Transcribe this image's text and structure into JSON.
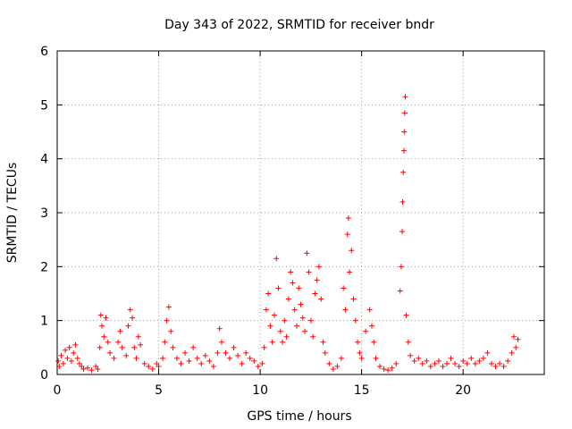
{
  "chart_data": {
    "type": "scatter",
    "title": "Day 343 of 2022, SRMTID for receiver bndr",
    "xlabel": "GPS time / hours",
    "ylabel": "SRMTID / TECUs",
    "xlim": [
      0,
      24
    ],
    "ylim": [
      0,
      6
    ],
    "x_ticks": [
      0,
      5,
      10,
      15,
      20
    ],
    "y_ticks": [
      0,
      1,
      2,
      3,
      4,
      5,
      6
    ],
    "grid": true,
    "marker": "+",
    "color": "#ff0000",
    "series": [
      {
        "name": "SRMTID",
        "points": [
          [
            0.05,
            0.25
          ],
          [
            0.1,
            0.15
          ],
          [
            0.2,
            0.35
          ],
          [
            0.3,
            0.2
          ],
          [
            0.4,
            0.45
          ],
          [
            0.5,
            0.3
          ],
          [
            0.6,
            0.5
          ],
          [
            0.7,
            0.25
          ],
          [
            0.8,
            0.4
          ],
          [
            0.9,
            0.55
          ],
          [
            1.0,
            0.3
          ],
          [
            1.1,
            0.2
          ],
          [
            1.2,
            0.15
          ],
          [
            1.3,
            0.1
          ],
          [
            1.5,
            0.12
          ],
          [
            1.7,
            0.08
          ],
          [
            1.9,
            0.15
          ],
          [
            2.0,
            0.1
          ],
          [
            2.1,
            0.5
          ],
          [
            2.15,
            1.1
          ],
          [
            2.2,
            0.9
          ],
          [
            2.3,
            0.7
          ],
          [
            2.4,
            1.05
          ],
          [
            2.5,
            0.6
          ],
          [
            2.6,
            0.4
          ],
          [
            2.8,
            0.3
          ],
          [
            3.0,
            0.6
          ],
          [
            3.1,
            0.8
          ],
          [
            3.2,
            0.5
          ],
          [
            3.4,
            0.35
          ],
          [
            3.5,
            0.9
          ],
          [
            3.6,
            1.2
          ],
          [
            3.7,
            1.05
          ],
          [
            3.8,
            0.5
          ],
          [
            3.9,
            0.3
          ],
          [
            4.0,
            0.7
          ],
          [
            4.1,
            0.55
          ],
          [
            4.3,
            0.2
          ],
          [
            4.5,
            0.15
          ],
          [
            4.7,
            0.1
          ],
          [
            4.9,
            0.2
          ],
          [
            5.0,
            0.15
          ],
          [
            5.2,
            0.3
          ],
          [
            5.3,
            0.6
          ],
          [
            5.4,
            1.0
          ],
          [
            5.5,
            1.25
          ],
          [
            5.6,
            0.8
          ],
          [
            5.7,
            0.5
          ],
          [
            5.9,
            0.3
          ],
          [
            6.1,
            0.2
          ],
          [
            6.3,
            0.4
          ],
          [
            6.5,
            0.25
          ],
          [
            6.7,
            0.5
          ],
          [
            6.9,
            0.3
          ],
          [
            7.1,
            0.2
          ],
          [
            7.3,
            0.35
          ],
          [
            7.5,
            0.25
          ],
          [
            7.7,
            0.15
          ],
          [
            7.9,
            0.4
          ],
          [
            8.0,
            0.85
          ],
          [
            8.1,
            0.6
          ],
          [
            8.3,
            0.4
          ],
          [
            8.5,
            0.3
          ],
          [
            8.7,
            0.5
          ],
          [
            8.9,
            0.35
          ],
          [
            9.1,
            0.2
          ],
          [
            9.3,
            0.4
          ],
          [
            9.5,
            0.3
          ],
          [
            9.7,
            0.25
          ],
          [
            9.9,
            0.15
          ],
          [
            10.1,
            0.2
          ],
          [
            10.2,
            0.5
          ],
          [
            10.3,
            1.2
          ],
          [
            10.4,
            1.5
          ],
          [
            10.5,
            0.9
          ],
          [
            10.6,
            0.6
          ],
          [
            10.7,
            1.1
          ],
          [
            10.8,
            2.15
          ],
          [
            10.9,
            1.6
          ],
          [
            11.0,
            0.8
          ],
          [
            11.1,
            0.6
          ],
          [
            11.2,
            1.0
          ],
          [
            11.3,
            0.7
          ],
          [
            11.4,
            1.4
          ],
          [
            11.5,
            1.9
          ],
          [
            11.6,
            1.7
          ],
          [
            11.7,
            1.2
          ],
          [
            11.8,
            0.9
          ],
          [
            11.9,
            1.6
          ],
          [
            12.0,
            1.3
          ],
          [
            12.1,
            1.05
          ],
          [
            12.2,
            0.8
          ],
          [
            12.3,
            2.25
          ],
          [
            12.4,
            1.9
          ],
          [
            12.5,
            1.0
          ],
          [
            12.6,
            0.7
          ],
          [
            12.7,
            1.5
          ],
          [
            12.8,
            1.75
          ],
          [
            12.9,
            2.0
          ],
          [
            13.0,
            1.4
          ],
          [
            13.1,
            0.6
          ],
          [
            13.2,
            0.4
          ],
          [
            13.4,
            0.2
          ],
          [
            13.6,
            0.1
          ],
          [
            13.8,
            0.15
          ],
          [
            14.0,
            0.3
          ],
          [
            14.1,
            1.6
          ],
          [
            14.2,
            1.2
          ],
          [
            14.3,
            2.6
          ],
          [
            14.35,
            2.9
          ],
          [
            14.4,
            1.9
          ],
          [
            14.5,
            2.3
          ],
          [
            14.6,
            1.4
          ],
          [
            14.7,
            1.0
          ],
          [
            14.8,
            0.6
          ],
          [
            14.9,
            0.4
          ],
          [
            15.0,
            0.3
          ],
          [
            15.2,
            0.8
          ],
          [
            15.4,
            1.2
          ],
          [
            15.5,
            0.9
          ],
          [
            15.6,
            0.6
          ],
          [
            15.7,
            0.3
          ],
          [
            15.9,
            0.15
          ],
          [
            16.1,
            0.1
          ],
          [
            16.3,
            0.08
          ],
          [
            16.5,
            0.12
          ],
          [
            16.7,
            0.2
          ],
          [
            16.9,
            1.55
          ],
          [
            16.95,
            2.0
          ],
          [
            17.0,
            2.65
          ],
          [
            17.02,
            3.2
          ],
          [
            17.05,
            3.75
          ],
          [
            17.08,
            4.15
          ],
          [
            17.1,
            4.5
          ],
          [
            17.12,
            4.85
          ],
          [
            17.15,
            5.15
          ],
          [
            17.2,
            1.1
          ],
          [
            17.3,
            0.6
          ],
          [
            17.4,
            0.35
          ],
          [
            17.6,
            0.25
          ],
          [
            17.8,
            0.3
          ],
          [
            18.0,
            0.2
          ],
          [
            18.2,
            0.25
          ],
          [
            18.4,
            0.15
          ],
          [
            18.6,
            0.2
          ],
          [
            18.8,
            0.25
          ],
          [
            19.0,
            0.15
          ],
          [
            19.2,
            0.2
          ],
          [
            19.4,
            0.3
          ],
          [
            19.6,
            0.2
          ],
          [
            19.8,
            0.15
          ],
          [
            20.0,
            0.25
          ],
          [
            20.2,
            0.2
          ],
          [
            20.4,
            0.3
          ],
          [
            20.6,
            0.2
          ],
          [
            20.8,
            0.25
          ],
          [
            21.0,
            0.3
          ],
          [
            21.2,
            0.4
          ],
          [
            21.4,
            0.2
          ],
          [
            21.6,
            0.15
          ],
          [
            21.8,
            0.2
          ],
          [
            22.0,
            0.15
          ],
          [
            22.2,
            0.25
          ],
          [
            22.4,
            0.4
          ],
          [
            22.5,
            0.7
          ],
          [
            22.6,
            0.5
          ],
          [
            22.7,
            0.65
          ]
        ]
      }
    ]
  }
}
